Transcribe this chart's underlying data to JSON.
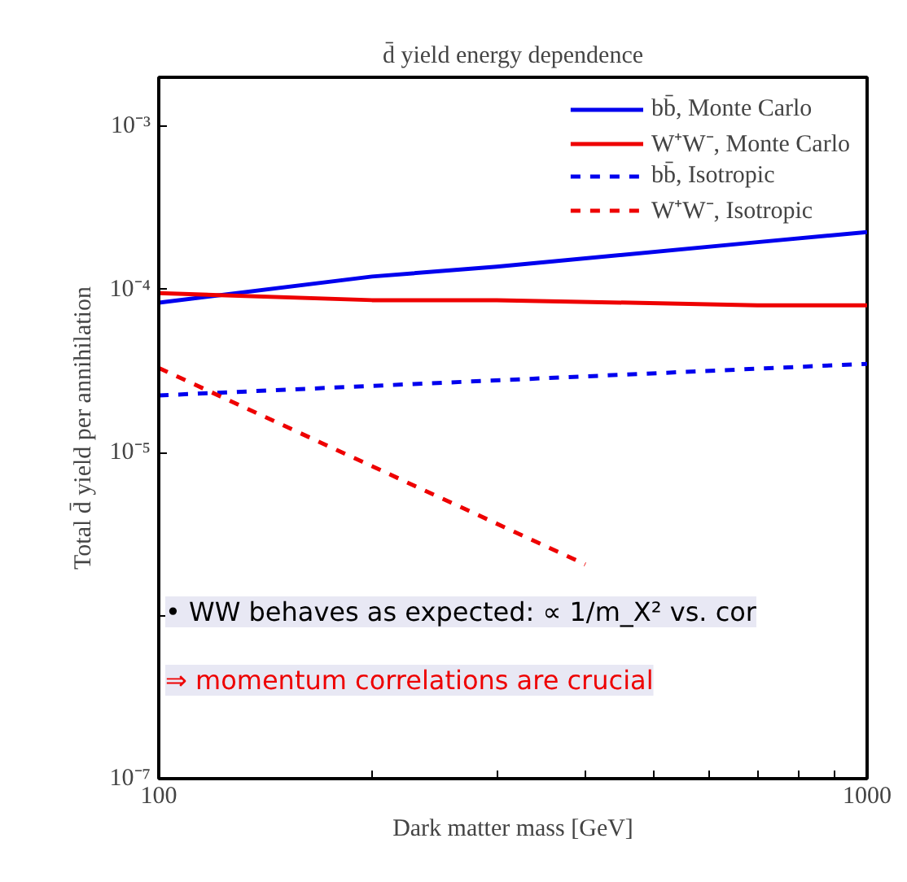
{
  "chart_data": {
    "type": "line",
    "title": "d̄ yield energy dependence",
    "xlabel": "Dark matter mass [GeV]",
    "ylabel": "Total d̄ yield per annihilation",
    "log": "xy",
    "xlim": [
      100,
      1000
    ],
    "ylim": [
      1e-07,
      0.002
    ],
    "xticks": [
      100,
      {
        "value": 200,
        "label": null
      },
      {
        "value": 300,
        "label": null
      },
      {
        "value": 400,
        "label": null
      },
      {
        "value": 500,
        "label": null
      },
      {
        "value": 600,
        "label": null
      },
      {
        "value": 700,
        "label": null
      },
      {
        "value": 800,
        "label": null
      },
      {
        "value": 900,
        "label": null
      },
      1000
    ],
    "yticks": [
      {
        "value": 1e-07,
        "label": "10⁻⁷"
      },
      {
        "value": 1e-06,
        "label": null
      },
      {
        "value": 1e-05,
        "label": "10⁻⁵"
      },
      {
        "value": 0.0001,
        "label": "10⁻⁴"
      },
      {
        "value": 0.001,
        "label": "10⁻³"
      }
    ],
    "grid": false,
    "legend": "top right",
    "series": [
      {
        "name": "bb̄, Monte Carlo",
        "color": "#0000ee",
        "line_style": "solid",
        "x": [
          100,
          200,
          300,
          700,
          1000
        ],
        "values": [
          8.3e-05,
          0.00012,
          0.000138,
          0.000195,
          0.000225
        ]
      },
      {
        "name": "W⁺W⁻, Monte Carlo",
        "color": "#ee0000",
        "line_style": "solid",
        "x": [
          100,
          200,
          300,
          700,
          1000
        ],
        "values": [
          9.5e-05,
          8.6e-05,
          8.6e-05,
          8e-05,
          8e-05
        ]
      },
      {
        "name": "bb̄, Isotropic",
        "color": "#0000ee",
        "line_style": "dashed",
        "x": [
          100,
          1000
        ],
        "values": [
          2.24e-05,
          3.5e-05
        ]
      },
      {
        "name": "W⁺W⁻, Isotropic",
        "color": "#ee0000",
        "line_style": "dashed",
        "x": [
          100,
          400
        ],
        "values": [
          3.3e-05,
          2.06e-06
        ]
      }
    ],
    "annotations": [
      "• WW behaves as expected: ∝ 1/m_X² vs. cor",
      "⇒ momentum correlations are crucial"
    ]
  }
}
